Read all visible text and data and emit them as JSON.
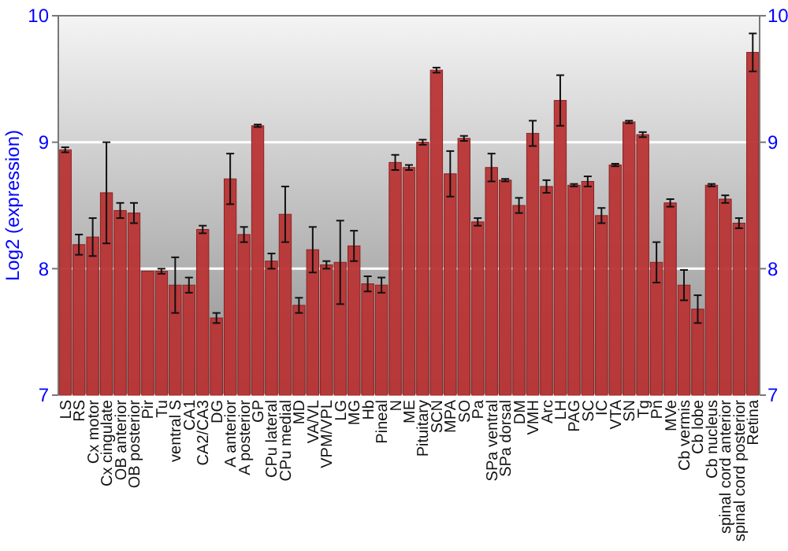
{
  "chart_data": {
    "type": "bar",
    "ylabel": "Log2 (expression)",
    "categories": [
      "LS",
      "RS",
      "Cx motor",
      "Cx cingulate",
      "OB anterior",
      "OB posterior",
      "Pir",
      "Tu",
      "ventral S",
      "CA1",
      "CA2/CA3",
      "DG",
      "A anterior",
      "A posterior",
      "GP",
      "CPu lateral",
      "CPu medial",
      "MD",
      "VA/VL",
      "VPM/VPL",
      "LG",
      "MG",
      "Hb",
      "Pineal",
      "N",
      "ME",
      "Pituitary",
      "SCN",
      "MPA",
      "SO",
      "Pa",
      "SPa ventral",
      "SPa dorsal",
      "DM",
      "VMH",
      "Arc",
      "LH",
      "PAG",
      "SC",
      "IC",
      "VTA",
      "SN",
      "Tg",
      "Pn",
      "MVe",
      "Cb vermis",
      "Cb lobe",
      "Cb nucleus",
      "spinal cord anterior",
      "spinal cord posterior",
      "Retina"
    ],
    "values": [
      8.94,
      8.19,
      8.25,
      8.6,
      8.46,
      8.44,
      7.98,
      7.98,
      7.87,
      7.87,
      8.31,
      7.61,
      8.71,
      8.27,
      9.13,
      8.06,
      8.43,
      7.71,
      8.15,
      8.03,
      8.05,
      8.18,
      7.88,
      7.87,
      8.84,
      8.8,
      9.0,
      9.57,
      8.75,
      9.03,
      8.37,
      8.8,
      8.7,
      8.5,
      9.07,
      8.65,
      9.33,
      8.66,
      8.69,
      8.42,
      8.82,
      9.16,
      9.06,
      8.05,
      8.52,
      7.87,
      7.68,
      8.66,
      8.55,
      8.36,
      9.71
    ],
    "errors": [
      0.02,
      0.08,
      0.15,
      0.4,
      0.06,
      0.08,
      null,
      0.02,
      0.22,
      0.06,
      0.03,
      0.04,
      0.2,
      0.06,
      0.01,
      0.06,
      0.22,
      0.06,
      0.18,
      0.03,
      0.33,
      0.12,
      0.06,
      0.06,
      0.06,
      0.02,
      0.02,
      0.02,
      0.18,
      0.02,
      0.03,
      0.11,
      0.01,
      0.06,
      0.1,
      0.05,
      0.2,
      0.01,
      0.04,
      0.06,
      0.01,
      0.01,
      0.02,
      0.16,
      0.03,
      0.12,
      0.11,
      0.01,
      0.03,
      0.04,
      0.15
    ],
    "color": "#b83434",
    "ylim": [
      7,
      10
    ],
    "yticks": [
      7,
      8,
      9,
      10
    ],
    "y2lim": [
      7,
      10
    ],
    "y2ticks": [
      7,
      8,
      9,
      10
    ],
    "grid": "y"
  }
}
